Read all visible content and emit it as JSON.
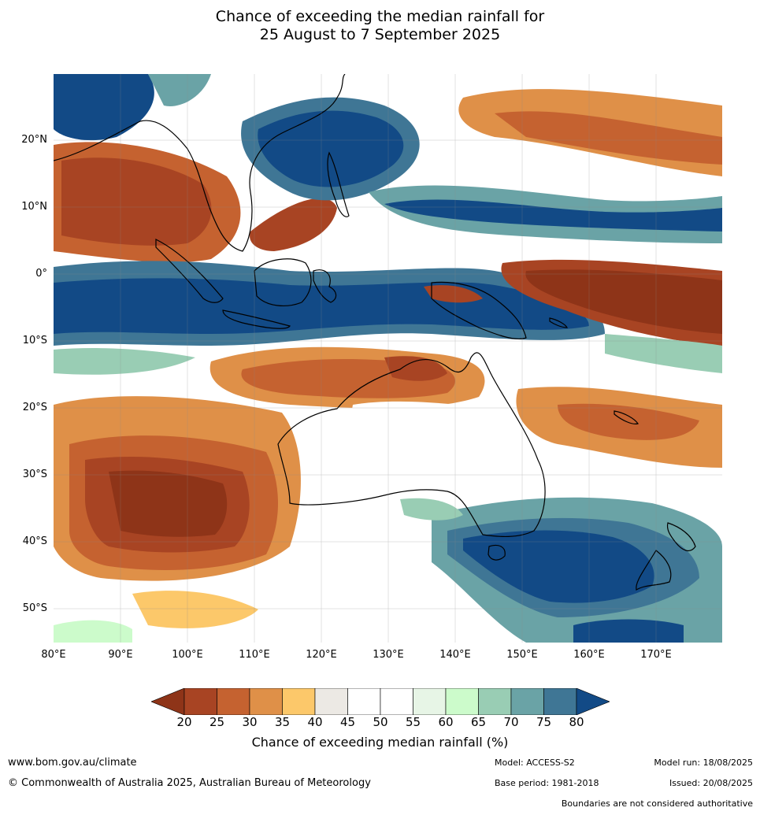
{
  "title": {
    "line1": "Chance of exceeding the median rainfall for",
    "line2": "25 August to 7 September 2025"
  },
  "map": {
    "lat_ticks": [
      "20°N",
      "10°N",
      "0°",
      "10°S",
      "20°S",
      "30°S",
      "40°S",
      "50°S"
    ],
    "lon_ticks": [
      "80°E",
      "90°E",
      "100°E",
      "110°E",
      "120°E",
      "130°E",
      "140°E",
      "150°E",
      "160°E",
      "170°E"
    ],
    "colors": {
      "c20": "#8e3418",
      "c25": "#a84423",
      "c30": "#c56230",
      "c35": "#df9048",
      "c40": "#fcc86a",
      "c45": "#ece9e4",
      "c50": "#ffffff",
      "c55": "#ffffff",
      "c60": "#e7f5e6",
      "c65": "#ccfbcb",
      "c70": "#99cdb4",
      "c75": "#6aa3a6",
      "c80": "#3f7695",
      "c_high": "#124a86"
    }
  },
  "colorbar": {
    "ticks": [
      "20",
      "25",
      "30",
      "35",
      "40",
      "45",
      "50",
      "55",
      "60",
      "65",
      "70",
      "75",
      "80"
    ],
    "label": "Chance of exceeding median rainfall (%)"
  },
  "footer": {
    "website": "www.bom.gov.au/climate",
    "copyright": "© Commonwealth of Australia 2025, Australian Bureau of Meteorology",
    "model": "Model: ACCESS-S2",
    "model_run": "Model run: 18/08/2025",
    "base_period": "Base period: 1981-2018",
    "issued": "Issued: 20/08/2025",
    "disclaimer": "Boundaries are not considered authoritative"
  }
}
